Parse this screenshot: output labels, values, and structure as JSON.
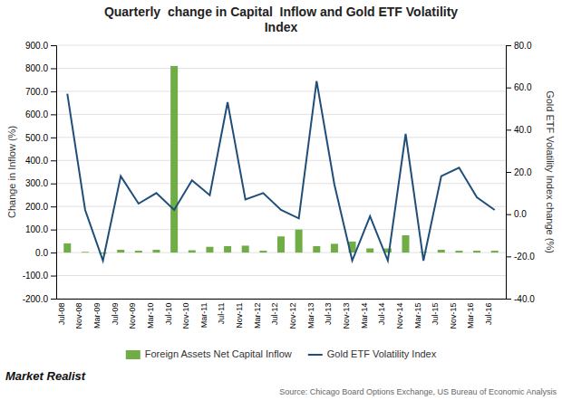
{
  "chart_data": {
    "type": "bar",
    "title": "Quarterly  change in Capital  Inflow and Gold ETF Volatility\nIndex",
    "y_label": "Change in Inflow (%)",
    "y2_label": "Gold ETF Volatility Index change (%)",
    "categories": [
      "Jul-08",
      "Nov-08",
      "Mar-09",
      "Jul-09",
      "Nov-09",
      "Mar-10",
      "Jul-10",
      "Nov-10",
      "Mar-11",
      "Jul-11",
      "Nov-11",
      "Mar-12",
      "Jul-12",
      "Nov-12",
      "Mar-13",
      "Jul-13",
      "Nov-13",
      "Mar-14",
      "Jul-14",
      "Nov-14",
      "Mar-15",
      "Jul-15",
      "Nov-15",
      "Mar-16",
      "Jul-16"
    ],
    "series": [
      {
        "name": "Foreign Assets Net Capital Inflow",
        "type": "bar",
        "color": "#70ad47",
        "values": [
          40,
          3,
          -5,
          12,
          8,
          12,
          810,
          10,
          25,
          28,
          30,
          8,
          70,
          100,
          28,
          38,
          48,
          18,
          18,
          75,
          3,
          12,
          8,
          8,
          8
        ]
      },
      {
        "name": "Gold ETF Volatility Index",
        "type": "line",
        "color": "#1f4e79",
        "axis": "y2",
        "values": [
          57,
          2,
          -22,
          18,
          5,
          10,
          2,
          16,
          9,
          53,
          7,
          10,
          2,
          -2,
          63,
          14,
          -22,
          -1,
          -22,
          38,
          -22,
          18,
          22,
          8,
          2
        ]
      }
    ],
    "ylim": [
      -200,
      900
    ],
    "yticks": [
      {
        "value": -200,
        "label": "-200.0"
      },
      {
        "value": -100,
        "label": "-100.0"
      },
      {
        "value": 0,
        "label": "0.0"
      },
      {
        "value": 100,
        "label": "100.0"
      },
      {
        "value": 200,
        "label": "200.0"
      },
      {
        "value": 300,
        "label": "300.0"
      },
      {
        "value": 400,
        "label": "400.0"
      },
      {
        "value": 500,
        "label": "500.0"
      },
      {
        "value": 600,
        "label": "600.0"
      },
      {
        "value": 700,
        "label": "700.0"
      },
      {
        "value": 800,
        "label": "800.0"
      },
      {
        "value": 900,
        "label": "900.0"
      }
    ],
    "y2lim": [
      -40,
      80
    ],
    "y2ticks": [
      {
        "value": -40,
        "label": "-40.0"
      },
      {
        "value": -20,
        "label": "-20.0"
      },
      {
        "value": 0,
        "label": "0.0"
      },
      {
        "value": 20,
        "label": "20.0"
      },
      {
        "value": 40,
        "label": "40.0"
      },
      {
        "value": 60,
        "label": "60.0"
      },
      {
        "value": 80,
        "label": "80.0"
      }
    ],
    "grid": true,
    "legend": "bottom",
    "annotations": [
      "Source: Chicago Board Options Exchange, US Bureau of Economic Analysis",
      "Market Realist"
    ]
  }
}
